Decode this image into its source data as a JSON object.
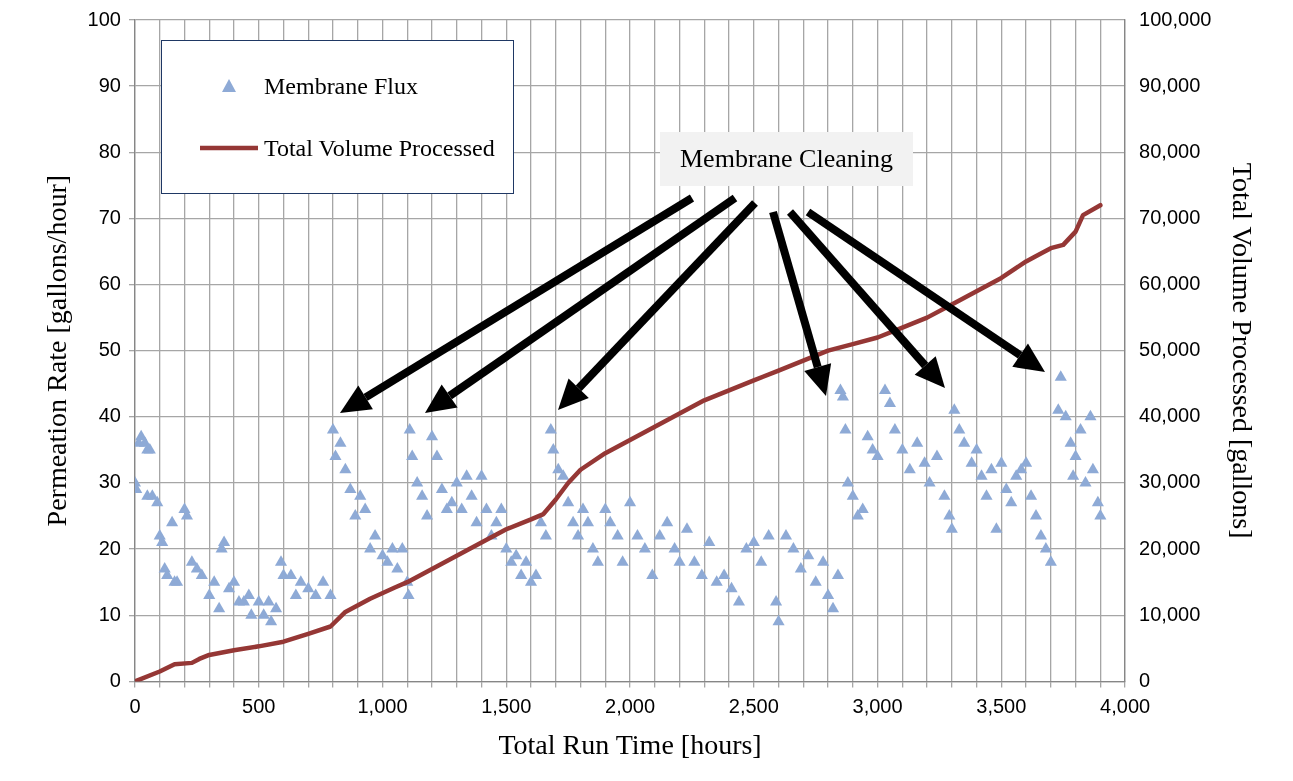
{
  "chart_data": {
    "type": "scatter",
    "xlabel": "Total Run Time [hours]",
    "ylabel": "Permeation Rate [gallons/hour]",
    "y2label": "Total Volume Processed [gallons]",
    "xlim": [
      0,
      4000
    ],
    "xticks": [
      {
        "value": 0,
        "label": "0"
      },
      {
        "value": 100,
        "label": null
      },
      {
        "value": 200,
        "label": null
      },
      {
        "value": 300,
        "label": null
      },
      {
        "value": 400,
        "label": null
      },
      {
        "value": 500,
        "label": "500"
      },
      {
        "value": 600,
        "label": null
      },
      {
        "value": 700,
        "label": null
      },
      {
        "value": 800,
        "label": null
      },
      {
        "value": 900,
        "label": null
      },
      {
        "value": 1000,
        "label": "1,000"
      },
      {
        "value": 1100,
        "label": null
      },
      {
        "value": 1200,
        "label": null
      },
      {
        "value": 1300,
        "label": null
      },
      {
        "value": 1400,
        "label": null
      },
      {
        "value": 1500,
        "label": "1,500"
      },
      {
        "value": 1600,
        "label": null
      },
      {
        "value": 1700,
        "label": null
      },
      {
        "value": 1800,
        "label": null
      },
      {
        "value": 1900,
        "label": null
      },
      {
        "value": 2000,
        "label": "2,000"
      },
      {
        "value": 2100,
        "label": null
      },
      {
        "value": 2200,
        "label": null
      },
      {
        "value": 2300,
        "label": null
      },
      {
        "value": 2400,
        "label": null
      },
      {
        "value": 2500,
        "label": "2,500"
      },
      {
        "value": 2600,
        "label": null
      },
      {
        "value": 2700,
        "label": null
      },
      {
        "value": 2800,
        "label": null
      },
      {
        "value": 2900,
        "label": null
      },
      {
        "value": 3000,
        "label": "3,000"
      },
      {
        "value": 3100,
        "label": null
      },
      {
        "value": 3200,
        "label": null
      },
      {
        "value": 3300,
        "label": null
      },
      {
        "value": 3400,
        "label": null
      },
      {
        "value": 3500,
        "label": "3,500"
      },
      {
        "value": 3600,
        "label": null
      },
      {
        "value": 3700,
        "label": null
      },
      {
        "value": 3800,
        "label": null
      },
      {
        "value": 3900,
        "label": null
      },
      {
        "value": 4000,
        "label": "4,000"
      }
    ],
    "ylim": [
      0,
      100
    ],
    "yticks": [
      0,
      10,
      20,
      30,
      40,
      50,
      60,
      70,
      80,
      90,
      100
    ],
    "y2lim": [
      0,
      100000
    ],
    "y2ticks": [
      {
        "value": 0,
        "label": "0"
      },
      {
        "value": 10000,
        "label": "10,000"
      },
      {
        "value": 20000,
        "label": "20,000"
      },
      {
        "value": 30000,
        "label": "30,000"
      },
      {
        "value": 40000,
        "label": "40,000"
      },
      {
        "value": 50000,
        "label": "50,000"
      },
      {
        "value": 60000,
        "label": "60,000"
      },
      {
        "value": 70000,
        "label": "70,000"
      },
      {
        "value": 80000,
        "label": "80,000"
      },
      {
        "value": 90000,
        "label": "90,000"
      },
      {
        "value": 100000,
        "label": "100,000"
      }
    ],
    "grid": true,
    "legend": "top left",
    "annotations": [
      "Membrane Cleaning"
    ],
    "series": [
      {
        "name": "Membrane Flux",
        "type": "scatter",
        "marker": "triangle",
        "color": "#8eaad6",
        "x": [
          0,
          5,
          15,
          25,
          40,
          50,
          50,
          60,
          70,
          90,
          100,
          110,
          120,
          130,
          150,
          160,
          170,
          200,
          210,
          230,
          250,
          270,
          300,
          320,
          340,
          350,
          360,
          380,
          400,
          420,
          440,
          460,
          470,
          500,
          520,
          540,
          550,
          570,
          590,
          600,
          630,
          650,
          670,
          700,
          730,
          760,
          790,
          800,
          810,
          830,
          850,
          870,
          890,
          910,
          930,
          950,
          970,
          1000,
          1020,
          1040,
          1060,
          1080,
          1100,
          1105,
          1110,
          1120,
          1140,
          1160,
          1180,
          1200,
          1220,
          1240,
          1260,
          1280,
          1300,
          1320,
          1340,
          1360,
          1380,
          1400,
          1420,
          1440,
          1460,
          1480,
          1500,
          1520,
          1540,
          1560,
          1580,
          1600,
          1620,
          1640,
          1660,
          1680,
          1690,
          1710,
          1730,
          1750,
          1770,
          1790,
          1810,
          1830,
          1850,
          1870,
          1900,
          1920,
          1950,
          1970,
          2000,
          2030,
          2060,
          2090,
          2120,
          2150,
          2180,
          2200,
          2230,
          2260,
          2290,
          2320,
          2350,
          2380,
          2410,
          2440,
          2470,
          2500,
          2530,
          2560,
          2590,
          2600,
          2630,
          2660,
          2690,
          2720,
          2750,
          2780,
          2800,
          2820,
          2840,
          2850,
          2860,
          2870,
          2880,
          2900,
          2920,
          2940,
          2960,
          2980,
          3000,
          3030,
          3050,
          3070,
          3100,
          3130,
          3160,
          3190,
          3210,
          3240,
          3270,
          3290,
          3300,
          3310,
          3330,
          3350,
          3380,
          3400,
          3420,
          3440,
          3460,
          3480,
          3500,
          3520,
          3540,
          3560,
          3580,
          3600,
          3620,
          3640,
          3660,
          3680,
          3700,
          3730,
          3740,
          3760,
          3780,
          3790,
          3800,
          3820,
          3840,
          3860,
          3870,
          3890,
          3900
        ],
        "values": [
          30,
          29,
          36,
          37,
          36,
          35,
          28,
          35,
          28,
          27,
          22,
          21,
          17,
          16,
          24,
          15,
          15,
          26,
          25,
          18,
          17,
          16,
          13,
          15,
          11,
          20,
          21,
          14,
          15,
          12,
          12,
          13,
          10,
          12,
          10,
          12,
          9,
          11,
          18,
          16,
          16,
          13,
          15,
          14,
          13,
          15,
          13,
          38,
          34,
          36,
          32,
          29,
          25,
          28,
          26,
          20,
          22,
          19,
          18,
          20,
          17,
          20,
          15,
          13,
          38,
          34,
          30,
          28,
          25,
          37,
          34,
          29,
          26,
          27,
          30,
          26,
          31,
          28,
          24,
          31,
          26,
          22,
          24,
          26,
          20,
          18,
          19,
          16,
          18,
          15,
          16,
          24,
          22,
          38,
          35,
          32,
          31,
          27,
          24,
          22,
          26,
          24,
          20,
          18,
          26,
          24,
          22,
          18,
          27,
          22,
          20,
          16,
          22,
          24,
          20,
          18,
          23,
          18,
          16,
          21,
          15,
          16,
          14,
          12,
          20,
          21,
          18,
          22,
          12,
          9,
          22,
          20,
          17,
          19,
          15,
          18,
          13,
          11,
          16,
          44,
          43,
          38,
          30,
          28,
          25,
          26,
          37,
          35,
          34,
          44,
          42,
          38,
          35,
          32,
          36,
          33,
          30,
          34,
          28,
          25,
          23,
          41,
          38,
          36,
          33,
          35,
          31,
          28,
          32,
          23,
          33,
          29,
          27,
          31,
          32,
          33,
          28,
          25,
          22,
          20,
          18,
          41,
          46,
          40,
          36,
          31,
          34,
          38,
          30,
          40,
          32,
          27,
          25
        ]
      },
      {
        "name": "Total Volume Processed",
        "type": "line",
        "marker": "none",
        "axis": "y2",
        "color": "#953735",
        "x": [
          0,
          100,
          160,
          230,
          260,
          300,
          400,
          500,
          600,
          700,
          790,
          850,
          950,
          1050,
          1100,
          1200,
          1300,
          1400,
          1500,
          1600,
          1650,
          1700,
          1750,
          1800,
          1900,
          2000,
          2100,
          2200,
          2300,
          2400,
          2500,
          2600,
          2700,
          2800,
          2900,
          3000,
          3100,
          3200,
          3300,
          3400,
          3500,
          3600,
          3700,
          3750,
          3800,
          3830,
          3900
        ],
        "values": [
          0,
          1500,
          2600,
          2800,
          3400,
          4000,
          4700,
          5300,
          6000,
          7200,
          8300,
          10500,
          12500,
          14200,
          15000,
          17000,
          19000,
          21000,
          23000,
          24500,
          25300,
          27500,
          30000,
          32000,
          34500,
          36500,
          38500,
          40500,
          42500,
          44000,
          45500,
          47000,
          48500,
          50000,
          51000,
          52000,
          53500,
          55000,
          57000,
          59000,
          61000,
          63500,
          65500,
          66000,
          68000,
          70500,
          72000
        ]
      }
    ]
  }
}
